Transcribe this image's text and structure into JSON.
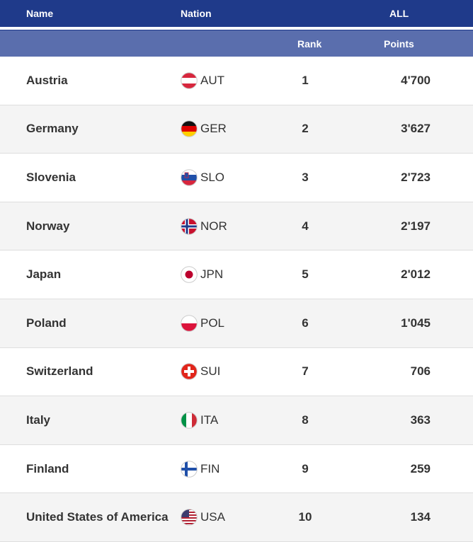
{
  "header": {
    "columns": [
      "Name",
      "Nation",
      "ALL"
    ],
    "subcolumns": [
      "Rank",
      "Points"
    ]
  },
  "table": {
    "rows": [
      [
        "Austria",
        "AUT",
        1,
        "4'700"
      ],
      [
        "Germany",
        "GER",
        2,
        "3'627"
      ],
      [
        "Slovenia",
        "SLO",
        3,
        "2'723"
      ],
      [
        "Norway",
        "NOR",
        4,
        "2'197"
      ],
      [
        "Japan",
        "JPN",
        5,
        "2'012"
      ],
      [
        "Poland",
        "POL",
        6,
        "1'045"
      ],
      [
        "Switzerland",
        "SUI",
        7,
        "706"
      ],
      [
        "Italy",
        "ITA",
        8,
        "363"
      ],
      [
        "Finland",
        "FIN",
        9,
        "259"
      ],
      [
        "United States of America",
        "USA",
        10,
        "134"
      ]
    ]
  }
}
